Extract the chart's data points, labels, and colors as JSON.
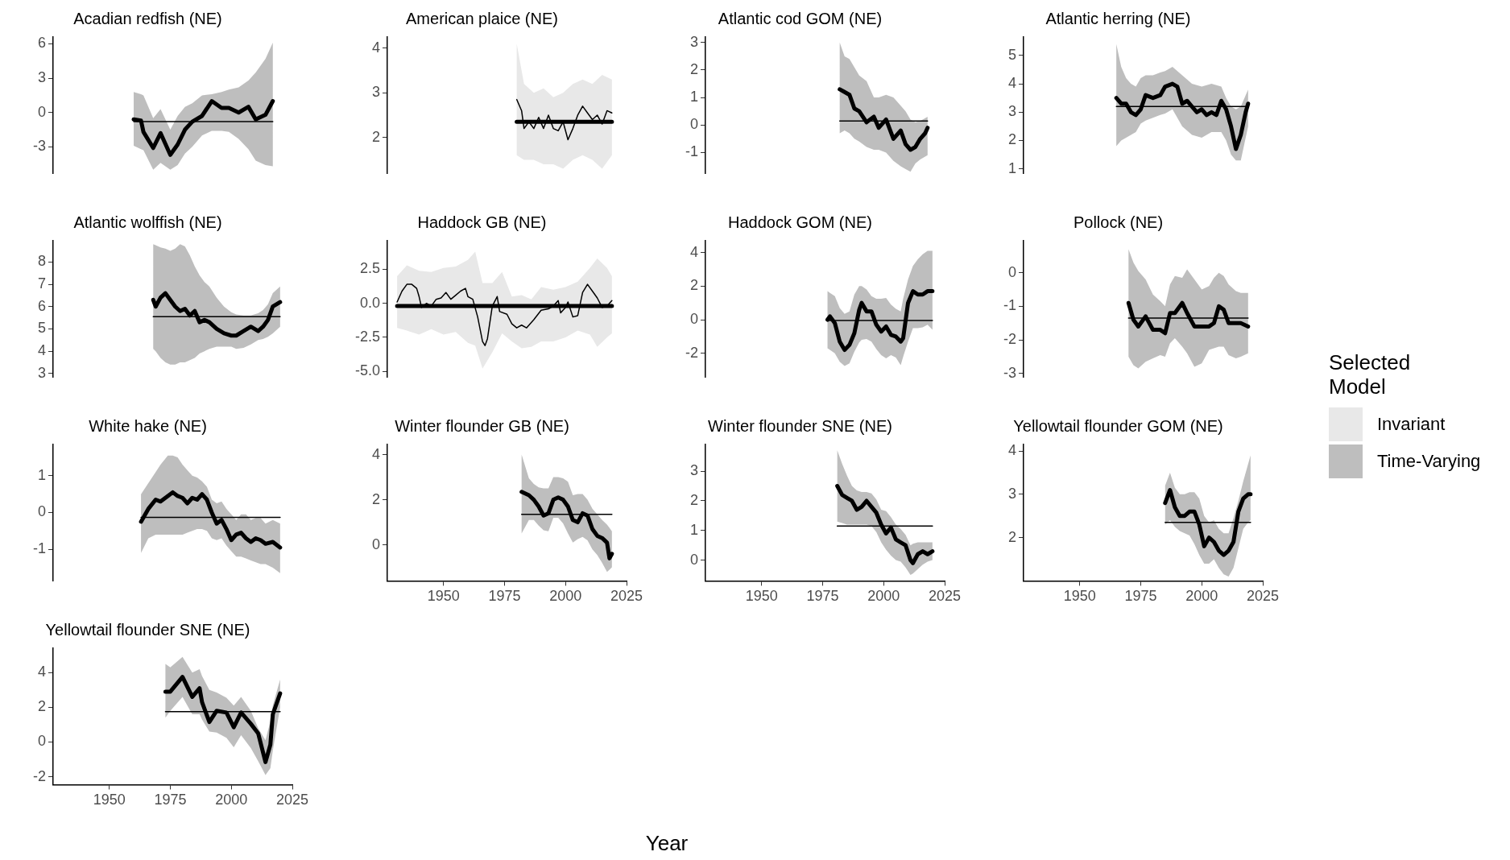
{
  "chart_data": [
    {
      "type": "line",
      "title": "Acadian redfish (NE)",
      "xlim": [
        1927,
        2025
      ],
      "xticks": [
        1950,
        1975,
        2000,
        2025
      ],
      "ylim": [
        -5.3,
        6.6
      ],
      "yticks": [
        -3,
        0,
        3,
        6
      ],
      "tick_labels": "y",
      "legend": "right",
      "legend_title": "Selected Model",
      "series": [
        {
          "type": "line",
          "name": "Time-Varying",
          "color": "#000000",
          "x": [
            1960,
            1963,
            1964,
            1968,
            1971,
            1975,
            1978,
            1981,
            1984,
            1988,
            1992,
            1996,
            1999,
            2003,
            2007,
            2010,
            2014,
            2017
          ],
          "values": [
            -0.6,
            -0.7,
            -1.7,
            -3.1,
            -1.8,
            -3.7,
            -2.8,
            -1.5,
            -0.8,
            -0.3,
            1.0,
            0.4,
            0.4,
            0.0,
            0.5,
            -0.6,
            -0.2,
            1.0
          ],
          "lower": [
            -2.9,
            -3.2,
            -3.3,
            -5.0,
            -4.4,
            -5.0,
            -4.6,
            -3.6,
            -3.0,
            -2.0,
            -1.6,
            -1.6,
            -1.7,
            -2.3,
            -3.2,
            -4.2,
            -4.6,
            -4.7
          ],
          "upper": [
            1.8,
            1.6,
            1.5,
            -0.5,
            0.3,
            -1.5,
            -0.3,
            0.5,
            0.8,
            1.5,
            1.6,
            1.8,
            2.0,
            2.2,
            2.8,
            3.5,
            4.7,
            6.1
          ]
        },
        {
          "type": "line",
          "color": "#000000",
          "x": [
            1960,
            2017
          ],
          "values": [
            -0.8,
            -0.8
          ]
        }
      ]
    },
    {
      "type": "line",
      "title": "American plaice (NE)",
      "xlim": [
        1927,
        2025
      ],
      "xticks": [
        1950,
        1975,
        2000,
        2025
      ],
      "ylim": [
        1.2,
        4.25
      ],
      "yticks": [
        2,
        3,
        4
      ],
      "tick_labels": "y",
      "series": [
        {
          "type": "line",
          "name": "Invariant",
          "color": "#000000",
          "x": [
            1980,
            1983,
            1987,
            1991,
            1995,
            1999,
            2003,
            2007,
            2011,
            2015,
            2019
          ],
          "values": [
            2.35,
            2.35,
            2.35,
            2.35,
            2.35,
            2.35,
            2.35,
            2.35,
            2.35,
            2.35,
            2.35
          ],
          "lower": [
            1.6,
            1.5,
            1.5,
            1.4,
            1.4,
            1.3,
            1.5,
            1.6,
            1.5,
            1.3,
            1.6
          ],
          "upper": [
            4.1,
            3.2,
            3.0,
            3.1,
            2.9,
            3.0,
            3.2,
            3.3,
            3.2,
            3.4,
            3.3
          ]
        },
        {
          "type": "line",
          "color": "#000000",
          "x": [
            1980,
            1982,
            1983,
            1985,
            1987,
            1989,
            1991,
            1993,
            1995,
            1997,
            1999,
            2001,
            2003,
            2005,
            2007,
            2009,
            2011,
            2013,
            2015,
            2017,
            2019
          ],
          "values": [
            2.85,
            2.6,
            2.2,
            2.35,
            2.2,
            2.45,
            2.2,
            2.5,
            2.2,
            2.15,
            2.35,
            1.95,
            2.2,
            2.5,
            2.7,
            2.55,
            2.4,
            2.5,
            2.3,
            2.6,
            2.55
          ]
        }
      ]
    },
    {
      "type": "line",
      "title": "Atlantic cod GOM (NE)",
      "xlim": [
        1927,
        2025
      ],
      "xticks": [
        1950,
        1975,
        2000,
        2025
      ],
      "ylim": [
        -1.75,
        3.2
      ],
      "yticks": [
        -1,
        0,
        1,
        2,
        3
      ],
      "tick_labels": "y",
      "series": [
        {
          "type": "line",
          "color": "#000000",
          "x": [
            1982,
            1984,
            1986,
            1988,
            1990,
            1993,
            1996,
            1998,
            2001,
            2004,
            2007,
            2009,
            2011,
            2013,
            2015,
            2017,
            2018
          ],
          "values": [
            1.3,
            1.2,
            1.1,
            0.6,
            0.5,
            0.1,
            0.3,
            -0.1,
            0.2,
            -0.5,
            -0.2,
            -0.7,
            -0.9,
            -0.8,
            -0.5,
            -0.3,
            -0.1
          ],
          "lower": [
            -0.3,
            -0.2,
            -0.3,
            -0.5,
            -0.6,
            -0.8,
            -0.9,
            -0.9,
            -1.0,
            -1.3,
            -1.5,
            -1.6,
            -1.7,
            -1.4,
            -1.25,
            -1.15,
            -1.1
          ],
          "upper": [
            3.0,
            2.5,
            2.4,
            2.1,
            1.8,
            1.6,
            1.0,
            1.0,
            1.1,
            1.0,
            0.7,
            0.5,
            0.2,
            0.1,
            0.15,
            0.25,
            0.3
          ]
        },
        {
          "type": "line",
          "color": "#000000",
          "x": [
            1982,
            2018
          ],
          "values": [
            0.15,
            0.15
          ]
        }
      ]
    },
    {
      "type": "line",
      "title": "Atlantic herring (NE)",
      "xlim": [
        1927,
        2025
      ],
      "xticks": [
        1950,
        1975,
        2000,
        2025
      ],
      "ylim": [
        0.85,
        5.65
      ],
      "yticks": [
        1,
        2,
        3,
        4,
        5
      ],
      "tick_labels": "y",
      "series": [
        {
          "type": "line",
          "color": "#000000",
          "x": [
            1965,
            1967,
            1969,
            1971,
            1973,
            1975,
            1977,
            1980,
            1983,
            1985,
            1988,
            1990,
            1992,
            1994,
            1996,
            1998,
            2000,
            2002,
            2004,
            2006,
            2008,
            2010,
            2012,
            2014,
            2016,
            2018,
            2019
          ],
          "values": [
            3.5,
            3.3,
            3.3,
            3.0,
            2.9,
            3.1,
            3.6,
            3.5,
            3.6,
            3.9,
            4.0,
            3.9,
            3.3,
            3.4,
            3.2,
            3.0,
            3.1,
            2.9,
            3.0,
            2.9,
            3.4,
            3.1,
            2.5,
            1.7,
            2.2,
            3.0,
            3.3
          ],
          "lower": [
            1.8,
            2.0,
            2.1,
            2.2,
            2.3,
            2.6,
            2.7,
            2.8,
            2.9,
            2.95,
            3.1,
            2.8,
            2.5,
            2.35,
            2.2,
            2.15,
            2.1,
            2.2,
            2.3,
            2.3,
            2.3,
            2.0,
            1.5,
            1.3,
            1.3,
            2.1,
            2.5
          ],
          "upper": [
            5.4,
            4.6,
            4.2,
            4.0,
            3.9,
            4.2,
            4.3,
            4.3,
            4.4,
            4.45,
            4.6,
            4.45,
            4.3,
            4.15,
            4.0,
            3.95,
            3.9,
            3.95,
            4.0,
            3.95,
            3.9,
            3.5,
            3.2,
            3.1,
            3.2,
            3.6,
            3.8
          ]
        },
        {
          "type": "line",
          "color": "#000000",
          "x": [
            1965,
            2019
          ],
          "values": [
            3.2,
            3.2
          ]
        }
      ]
    },
    {
      "type": "line",
      "title": "Atlantic wolffish (NE)",
      "xlim": [
        1927,
        2025
      ],
      "xticks": [
        1950,
        1975,
        2000,
        2025
      ],
      "ylim": [
        2.85,
        8.95
      ],
      "yticks": [
        3,
        4,
        5,
        6,
        7,
        8
      ],
      "tick_labels": "y",
      "series": [
        {
          "type": "line",
          "color": "#000000",
          "x": [
            1968,
            1969,
            1971,
            1973,
            1975,
            1977,
            1979,
            1981,
            1983,
            1985,
            1987,
            1989,
            1991,
            1994,
            1997,
            2000,
            2002,
            2005,
            2008,
            2011,
            2013,
            2015,
            2017,
            2020
          ],
          "values": [
            6.3,
            6.0,
            6.4,
            6.6,
            6.3,
            6.0,
            5.8,
            5.9,
            5.6,
            5.8,
            5.3,
            5.4,
            5.3,
            5.0,
            4.8,
            4.7,
            4.7,
            4.9,
            5.1,
            4.9,
            5.1,
            5.4,
            6.0,
            6.2
          ],
          "lower": [
            4.1,
            4.0,
            3.7,
            3.5,
            3.4,
            3.4,
            3.5,
            3.5,
            3.6,
            3.7,
            3.9,
            4.0,
            4.1,
            4.2,
            4.2,
            4.2,
            4.1,
            4.15,
            4.3,
            4.5,
            4.55,
            4.65,
            4.8,
            5.1
          ],
          "upper": [
            8.8,
            8.75,
            8.65,
            8.6,
            8.5,
            8.6,
            8.8,
            8.7,
            8.3,
            7.8,
            7.4,
            7.1,
            6.9,
            6.4,
            6.0,
            5.75,
            5.65,
            5.6,
            5.6,
            5.7,
            5.85,
            6.1,
            6.6,
            6.9
          ]
        },
        {
          "type": "line",
          "color": "#000000",
          "x": [
            1968,
            2020
          ],
          "values": [
            5.55,
            5.55
          ]
        }
      ]
    },
    {
      "type": "line",
      "title": "Haddock GB (NE)",
      "xlim": [
        1927,
        2025
      ],
      "xticks": [
        1950,
        1975,
        2000,
        2025
      ],
      "ylim": [
        -5.4,
        4.6
      ],
      "yticks": [
        {
          "value": -5,
          "label": "-5.0"
        },
        {
          "value": -2.5,
          "label": "-2.5"
        },
        {
          "value": 0,
          "label": "0.0"
        },
        {
          "value": 2.5,
          "label": "2.5"
        }
      ],
      "tick_labels": "y",
      "series": [
        {
          "type": "line",
          "color": "#000000",
          "x": [
            1931,
            1935,
            1940,
            1945,
            1950,
            1955,
            1960,
            1963,
            1966,
            1970,
            1974,
            1978,
            1982,
            1986,
            1990,
            1995,
            2000,
            2005,
            2010,
            2013,
            2017,
            2019
          ],
          "values": [
            -0.2,
            -0.2,
            -0.2,
            -0.2,
            -0.2,
            -0.2,
            -0.2,
            -0.2,
            -0.2,
            -0.2,
            -0.2,
            -0.2,
            -0.2,
            -0.2,
            -0.2,
            -0.2,
            -0.2,
            -0.2,
            -0.2,
            -0.2,
            -0.2,
            -0.2
          ],
          "lower": [
            -1.8,
            -2.0,
            -2.3,
            -1.9,
            -2.3,
            -2.1,
            -2.9,
            -3.1,
            -4.8,
            -3.6,
            -2.2,
            -2.8,
            -3.3,
            -3.2,
            -2.8,
            -2.8,
            -2.5,
            -2.0,
            -2.3,
            -3.2,
            -2.5,
            -2.2
          ],
          "upper": [
            2.0,
            2.8,
            2.4,
            2.3,
            2.6,
            2.7,
            3.2,
            3.8,
            1.5,
            1.5,
            2.3,
            0.5,
            0.6,
            0.3,
            1.2,
            1.0,
            1.2,
            1.6,
            2.6,
            3.3,
            2.6,
            2.0
          ]
        },
        {
          "type": "line",
          "color": "#000000",
          "x": [
            1931,
            1933,
            1935,
            1937,
            1939,
            1940,
            1941,
            1943,
            1945,
            1947,
            1949,
            1951,
            1953,
            1955,
            1957,
            1959,
            1960,
            1962,
            1964,
            1966,
            1967,
            1968,
            1970,
            1972,
            1973,
            1976,
            1978,
            1980,
            1982,
            1984,
            1987,
            1990,
            1993,
            1995,
            1997,
            1998,
            2000,
            2001,
            2003,
            2005,
            2007,
            2009,
            2011,
            2013,
            2015,
            2017,
            2019
          ],
          "values": [
            0.1,
            0.9,
            1.4,
            1.4,
            1.1,
            0.5,
            -0.3,
            0.0,
            -0.2,
            0.3,
            0.4,
            0.8,
            0.3,
            0.6,
            0.9,
            1.1,
            0.5,
            0.3,
            -1.0,
            -2.8,
            -3.1,
            -2.6,
            -0.2,
            0.5,
            -0.6,
            -0.8,
            -1.5,
            -1.8,
            -1.6,
            -1.8,
            -1.2,
            -0.5,
            -0.4,
            -0.2,
            0.2,
            -0.7,
            -0.3,
            0.1,
            -1.0,
            -0.9,
            0.8,
            1.4,
            0.9,
            0.4,
            -0.3,
            -0.2,
            0.2
          ]
        }
      ]
    },
    {
      "type": "line",
      "title": "Haddock GOM (NE)",
      "xlim": [
        1927,
        2025
      ],
      "xticks": [
        1950,
        1975,
        2000,
        2025
      ],
      "ylim": [
        -3.4,
        4.7
      ],
      "yticks": [
        -2,
        0,
        2,
        4
      ],
      "tick_labels": "y",
      "series": [
        {
          "type": "line",
          "color": "#000000",
          "x": [
            1977,
            1978,
            1980,
            1982,
            1984,
            1986,
            1988,
            1990,
            1991,
            1993,
            1995,
            1997,
            1999,
            2001,
            2003,
            2005,
            2007,
            2008,
            2010,
            2012,
            2014,
            2016,
            2018,
            2020
          ],
          "values": [
            0.0,
            0.2,
            -0.2,
            -1.3,
            -1.8,
            -1.5,
            -0.8,
            0.6,
            1.0,
            0.5,
            0.5,
            -0.3,
            -0.7,
            -0.4,
            -0.9,
            -1.0,
            -1.3,
            -1.1,
            1.0,
            1.7,
            1.5,
            1.5,
            1.7,
            1.7
          ],
          "lower": [
            -1.7,
            -1.8,
            -2.0,
            -2.5,
            -2.75,
            -2.6,
            -1.9,
            -1.35,
            -1.2,
            -1.15,
            -1.3,
            -1.75,
            -2.1,
            -2.3,
            -2.1,
            -2.25,
            -2.7,
            -2.2,
            -1.3,
            -0.5,
            -0.5,
            -0.45,
            -0.3,
            -0.6
          ],
          "upper": [
            1.7,
            1.6,
            1.4,
            0.7,
            0.35,
            0.5,
            1.5,
            2.0,
            2.0,
            1.8,
            1.4,
            1.25,
            1.25,
            1.3,
            0.9,
            0.65,
            0.5,
            1.25,
            2.4,
            3.2,
            3.6,
            3.9,
            4.1,
            4.1
          ]
        },
        {
          "type": "line",
          "color": "#000000",
          "x": [
            1977,
            2020
          ],
          "values": [
            -0.05,
            -0.05
          ]
        }
      ]
    },
    {
      "type": "line",
      "title": "Pollock (NE)",
      "xlim": [
        1927,
        2025
      ],
      "xticks": [
        1950,
        1975,
        2000,
        2025
      ],
      "ylim": [
        -3.1,
        0.95
      ],
      "yticks": [
        -3,
        -2,
        -1,
        0
      ],
      "tick_labels": "y",
      "series": [
        {
          "type": "line",
          "color": "#000000",
          "x": [
            1970,
            1972,
            1974,
            1977,
            1980,
            1983,
            1985,
            1987,
            1989,
            1992,
            1994,
            1997,
            2000,
            2003,
            2005,
            2007,
            2009,
            2011,
            2014,
            2016,
            2019
          ],
          "values": [
            -0.9,
            -1.4,
            -1.6,
            -1.3,
            -1.7,
            -1.7,
            -1.8,
            -1.2,
            -1.2,
            -0.9,
            -1.2,
            -1.6,
            -1.6,
            -1.6,
            -1.5,
            -1.0,
            -1.1,
            -1.5,
            -1.5,
            -1.5,
            -1.6
          ],
          "lower": [
            -2.5,
            -2.75,
            -2.85,
            -2.65,
            -2.55,
            -2.45,
            -2.5,
            -2.1,
            -1.95,
            -2.2,
            -2.4,
            -2.8,
            -2.7,
            -2.3,
            -2.25,
            -2.2,
            -2.2,
            -2.45,
            -2.55,
            -2.5,
            -2.4
          ],
          "upper": [
            0.7,
            0.3,
            0.05,
            -0.2,
            -0.65,
            -0.85,
            -1.0,
            -0.35,
            -0.1,
            -0.15,
            0.1,
            -0.2,
            -0.5,
            -0.4,
            -0.15,
            0.0,
            -0.1,
            -0.35,
            -0.55,
            -0.6,
            -0.6
          ]
        },
        {
          "type": "line",
          "color": "#000000",
          "x": [
            1970,
            2019
          ],
          "values": [
            -1.35,
            -1.35
          ]
        }
      ]
    },
    {
      "type": "line",
      "title": "White hake (NE)",
      "xlim": [
        1927,
        2025
      ],
      "xticks": [
        1950,
        1975,
        2000,
        2025
      ],
      "ylim": [
        -1.85,
        1.85
      ],
      "yticks": [
        -1,
        0,
        1
      ],
      "tick_labels": "y",
      "series": [
        {
          "type": "line",
          "color": "#000000",
          "x": [
            1963,
            1966,
            1969,
            1971,
            1974,
            1976,
            1978,
            1980,
            1982,
            1984,
            1986,
            1988,
            1990,
            1992,
            1994,
            1996,
            1998,
            2000,
            2002,
            2004,
            2006,
            2008,
            2010,
            2012,
            2014,
            2017,
            2020
          ],
          "values": [
            -0.25,
            0.1,
            0.35,
            0.3,
            0.45,
            0.55,
            0.45,
            0.4,
            0.25,
            0.4,
            0.35,
            0.5,
            0.35,
            0.0,
            -0.3,
            -0.2,
            -0.45,
            -0.75,
            -0.6,
            -0.55,
            -0.7,
            -0.8,
            -0.7,
            -0.75,
            -0.85,
            -0.8,
            -0.95
          ],
          "lower": [
            -1.1,
            -0.7,
            -0.6,
            -0.6,
            -0.6,
            -0.6,
            -0.6,
            -0.6,
            -0.55,
            -0.5,
            -0.45,
            -0.45,
            -0.5,
            -0.7,
            -0.75,
            -0.7,
            -0.9,
            -1.05,
            -1.2,
            -1.2,
            -1.25,
            -1.3,
            -1.35,
            -1.4,
            -1.4,
            -1.5,
            -1.65
          ],
          "upper": [
            0.5,
            0.8,
            1.1,
            1.3,
            1.55,
            1.55,
            1.5,
            1.3,
            1.15,
            1.0,
            0.95,
            0.85,
            0.7,
            0.35,
            0.25,
            0.3,
            0.1,
            -0.05,
            -0.2,
            -0.05,
            -0.05,
            -0.2,
            -0.15,
            -0.15,
            -0.3,
            -0.2,
            -0.3
          ]
        },
        {
          "type": "line",
          "color": "#000000",
          "x": [
            1963,
            2020
          ],
          "values": [
            -0.13,
            -0.13
          ]
        }
      ]
    },
    {
      "type": "line",
      "title": "Winter flounder GB (NE)",
      "xlim": [
        1927,
        2025
      ],
      "xticks": [
        1950,
        1975,
        2000,
        2025
      ],
      "ylim": [
        -1.6,
        4.45
      ],
      "yticks": [
        0,
        2,
        4
      ],
      "series": [
        {
          "type": "line",
          "color": "#000000",
          "x": [
            1982,
            1985,
            1987,
            1989,
            1991,
            1993,
            1995,
            1997,
            1999,
            2001,
            2003,
            2005,
            2007,
            2009,
            2011,
            2013,
            2015,
            2017,
            2018,
            2019
          ],
          "values": [
            2.35,
            2.2,
            2.0,
            1.7,
            1.3,
            1.4,
            2.0,
            2.1,
            2.0,
            1.7,
            1.1,
            1.0,
            1.4,
            1.3,
            0.7,
            0.4,
            0.3,
            0.1,
            -0.6,
            -0.4
          ],
          "lower": [
            0.5,
            1.1,
            1.1,
            0.85,
            0.65,
            0.6,
            1.2,
            1.2,
            0.95,
            0.5,
            0.1,
            0.25,
            0.35,
            0.2,
            -0.2,
            -0.45,
            -0.8,
            -1.2,
            -1.1,
            -1.0
          ],
          "upper": [
            4.0,
            2.95,
            2.7,
            2.55,
            2.5,
            2.5,
            3.0,
            3.0,
            2.95,
            2.8,
            2.2,
            2.25,
            2.25,
            2.0,
            1.6,
            1.35,
            1.1,
            0.9,
            0.75,
            0.6
          ]
        },
        {
          "type": "line",
          "color": "#000000",
          "x": [
            1982,
            2019
          ],
          "values": [
            1.35,
            1.35
          ]
        }
      ]
    },
    {
      "type": "line",
      "title": "Winter flounder SNE (NE)",
      "xlabel": "Year",
      "xlim": [
        1927,
        2025
      ],
      "xticks": [
        1950,
        1975,
        2000,
        2025
      ],
      "ylim": [
        -0.7,
        3.9
      ],
      "yticks": [
        0,
        1,
        2,
        3
      ],
      "series": [
        {
          "type": "line",
          "color": "#000000",
          "x": [
            1981,
            1983,
            1985,
            1987,
            1989,
            1991,
            1993,
            1995,
            1997,
            1999,
            2001,
            2003,
            2005,
            2007,
            2009,
            2011,
            2012,
            2014,
            2016,
            2018,
            2020
          ],
          "values": [
            2.5,
            2.2,
            2.1,
            2.0,
            1.7,
            1.8,
            2.0,
            1.8,
            1.6,
            1.2,
            0.9,
            1.1,
            0.7,
            0.6,
            0.5,
            0.0,
            -0.1,
            0.2,
            0.3,
            0.2,
            0.3
          ],
          "lower": [
            1.3,
            1.25,
            1.2,
            1.2,
            1.2,
            1.2,
            1.2,
            1.15,
            0.95,
            0.6,
            0.35,
            0.15,
            0.0,
            -0.05,
            -0.25,
            -0.5,
            -0.45,
            -0.3,
            -0.15,
            -0.05,
            0.0
          ],
          "upper": [
            3.7,
            3.25,
            2.85,
            2.5,
            2.35,
            2.3,
            2.3,
            2.25,
            2.05,
            1.7,
            1.65,
            1.45,
            1.2,
            1.05,
            0.85,
            0.5,
            0.55,
            0.6,
            0.6,
            0.6,
            0.6
          ]
        },
        {
          "type": "line",
          "color": "#000000",
          "x": [
            1981,
            2020
          ],
          "values": [
            1.15,
            1.15
          ]
        }
      ]
    },
    {
      "type": "line",
      "title": "Yellowtail flounder GOM (NE)",
      "xlim": [
        1927,
        2025
      ],
      "xticks": [
        1950,
        1975,
        2000,
        2025
      ],
      "ylim": [
        1.0,
        4.15
      ],
      "yticks": [
        2,
        3,
        4
      ],
      "series": [
        {
          "type": "line",
          "color": "#000000",
          "x": [
            1985,
            1987,
            1989,
            1991,
            1993,
            1995,
            1997,
            1999,
            2001,
            2003,
            2005,
            2007,
            2009,
            2011,
            2013,
            2015,
            2017,
            2019,
            2020
          ],
          "values": [
            2.8,
            3.1,
            2.7,
            2.5,
            2.5,
            2.6,
            2.6,
            2.3,
            1.8,
            2.0,
            1.9,
            1.7,
            1.6,
            1.7,
            1.9,
            2.6,
            2.9,
            3.0,
            3.0
          ],
          "lower": [
            2.3,
            2.4,
            2.25,
            2.15,
            2.1,
            2.05,
            1.85,
            1.6,
            1.4,
            1.4,
            1.5,
            1.3,
            1.15,
            1.1,
            1.3,
            1.75,
            2.2,
            2.35,
            2.4
          ],
          "upper": [
            3.2,
            3.5,
            3.15,
            3.0,
            3.0,
            3.05,
            3.05,
            2.9,
            2.5,
            2.35,
            2.4,
            2.2,
            2.1,
            2.1,
            2.45,
            2.85,
            3.3,
            3.7,
            3.9
          ]
        },
        {
          "type": "line",
          "color": "#000000",
          "x": [
            1985,
            2020
          ],
          "values": [
            2.35,
            2.35
          ]
        }
      ]
    },
    {
      "type": "line",
      "title": "Yellowtail flounder SNE (NE)",
      "xlim": [
        1927,
        2025
      ],
      "xticks": [
        1950,
        1975,
        2000,
        2025
      ],
      "ylim": [
        -2.45,
        5.4
      ],
      "yticks": [
        -2,
        0,
        2,
        4
      ],
      "series": [
        {
          "type": "line",
          "color": "#000000",
          "x": [
            1973,
            1975,
            1980,
            1984,
            1987,
            1988,
            1991,
            1994,
            1998,
            2001,
            2004,
            2008,
            2011,
            2014,
            2016,
            2017,
            2020
          ],
          "values": [
            2.9,
            2.9,
            3.75,
            2.6,
            3.1,
            2.3,
            1.15,
            1.8,
            1.7,
            0.85,
            1.7,
            1.05,
            0.5,
            -1.15,
            -0.15,
            1.6,
            2.8
          ],
          "lower": [
            1.4,
            1.8,
            2.6,
            1.6,
            1.6,
            1.3,
            0.6,
            0.55,
            0.25,
            -0.3,
            0.4,
            -0.35,
            -1.1,
            -1.9,
            -1.5,
            -0.5,
            2.0
          ],
          "upper": [
            4.5,
            4.3,
            4.9,
            4.0,
            4.2,
            3.8,
            3.0,
            2.85,
            2.55,
            2.1,
            2.6,
            1.8,
            0.8,
            0.1,
            1.2,
            2.1,
            3.6
          ]
        },
        {
          "type": "line",
          "color": "#000000",
          "x": [
            1973,
            2020
          ],
          "values": [
            1.75,
            1.75
          ]
        }
      ]
    }
  ]
}
